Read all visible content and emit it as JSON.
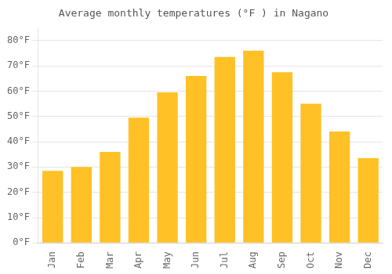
{
  "chart_data": {
    "type": "bar",
    "title": "Average monthly temperatures (°F ) in Nagano",
    "categories": [
      "Jan",
      "Feb",
      "Mar",
      "Apr",
      "May",
      "Jun",
      "Jul",
      "Aug",
      "Sep",
      "Oct",
      "Nov",
      "Dec"
    ],
    "values": [
      28.5,
      30.0,
      36.0,
      49.5,
      59.5,
      66.0,
      73.5,
      76.0,
      67.5,
      55.0,
      44.0,
      33.5
    ],
    "color": "#FFC125",
    "ylim": [
      0,
      85
    ],
    "yticks": [
      {
        "value": 0,
        "label": "0°F"
      },
      {
        "value": 10,
        "label": "10°F"
      },
      {
        "value": 20,
        "label": "20°F"
      },
      {
        "value": 30,
        "label": "30°F"
      },
      {
        "value": 40,
        "label": "40°F"
      },
      {
        "value": 50,
        "label": "50°F"
      },
      {
        "value": 60,
        "label": "60°F"
      },
      {
        "value": 70,
        "label": "70°F"
      },
      {
        "value": 80,
        "label": "80°F"
      }
    ],
    "grid": true
  }
}
